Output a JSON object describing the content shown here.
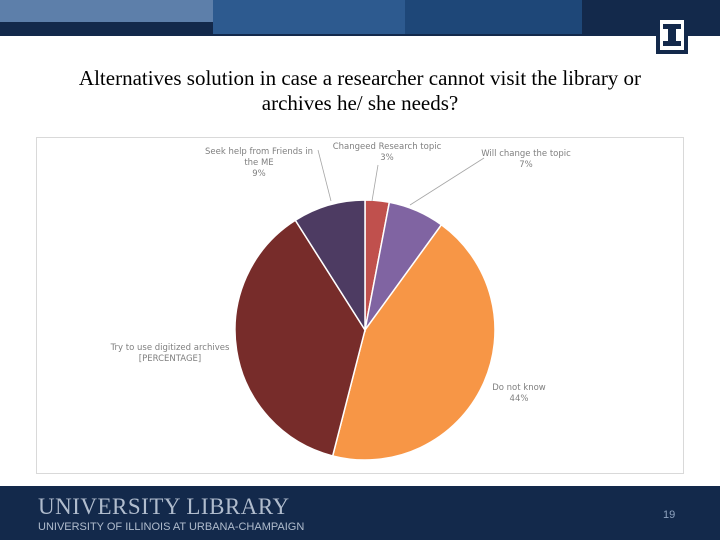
{
  "slide": {
    "title_line1": "Alternatives solution in case a researcher cannot visit the library or",
    "title_line2": "archives he/ she  needs?",
    "page_number": "19"
  },
  "footer": {
    "line1": "UNIVERSITY LIBRARY",
    "line2": "UNIVERSITY OF ILLINOIS AT URBANA-CHAMPAIGN"
  },
  "logo": {
    "icon": "block-i-logo"
  },
  "chart_data": {
    "type": "pie",
    "title": "",
    "start_angle_deg": 0,
    "direction": "clockwise",
    "slices": [
      {
        "label_lines": [
          "Changeed Research topic",
          "3%"
        ],
        "value": 3,
        "color": "#c0504d"
      },
      {
        "label_lines": [
          "Will change the topic",
          "7%"
        ],
        "value": 7,
        "color": "#8064a2"
      },
      {
        "label_lines": [
          "Do not know",
          "44%"
        ],
        "value": 44,
        "color": "#f79646"
      },
      {
        "label_lines": [
          "Try to use digitized archives",
          "[PERCENTAGE]"
        ],
        "value": 37,
        "color": "#772c2a"
      },
      {
        "label_lines": [
          "Seek help from Friends in",
          "the ME",
          "9%"
        ],
        "value": 9,
        "color": "#4d3b62"
      }
    ],
    "label_color": "#7f7f7f"
  }
}
